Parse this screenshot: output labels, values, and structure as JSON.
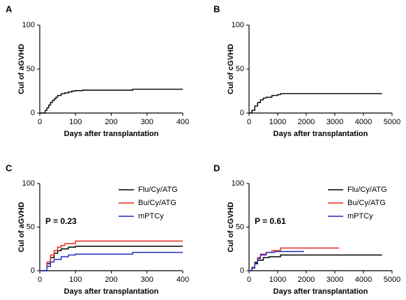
{
  "chart_data": [
    {
      "type": "line",
      "panel": "A",
      "step": true,
      "xlabel": "Days after transplantation",
      "ylabel": "Cul of aGVHD",
      "xlim": [
        0,
        400
      ],
      "ylim": [
        0,
        100
      ],
      "xticks": [
        0,
        100,
        200,
        300,
        400
      ],
      "yticks": [
        0,
        50,
        100
      ],
      "series": [
        {
          "color": "#000000",
          "x": [
            0,
            10,
            15,
            20,
            25,
            30,
            35,
            40,
            45,
            50,
            60,
            70,
            80,
            90,
            100,
            120,
            260,
            400
          ],
          "values": [
            0,
            0,
            3,
            6,
            9,
            12,
            14,
            16,
            18,
            20,
            22,
            23,
            24,
            25,
            25.5,
            26,
            27,
            27
          ]
        }
      ]
    },
    {
      "type": "line",
      "panel": "B",
      "step": true,
      "xlabel": "Days after transplantation",
      "ylabel": "Cul of cGVHD",
      "xlim": [
        0,
        5000
      ],
      "ylim": [
        0,
        100
      ],
      "xticks": [
        0,
        1000,
        2000,
        3000,
        4000,
        5000
      ],
      "yticks": [
        0,
        50,
        100
      ],
      "series": [
        {
          "color": "#000000",
          "x": [
            0,
            100,
            200,
            300,
            400,
            500,
            600,
            800,
            1000,
            1100,
            4650
          ],
          "values": [
            0,
            3,
            8,
            12,
            15,
            17,
            18,
            20,
            21,
            22,
            22
          ]
        }
      ]
    },
    {
      "type": "line",
      "panel": "C",
      "step": true,
      "xlabel": "Days after transplantation",
      "ylabel": "Cul of aGVHD",
      "annotation": "P = 0.23",
      "legend": "upper right",
      "xlim": [
        0,
        400
      ],
      "ylim": [
        0,
        100
      ],
      "xticks": [
        0,
        100,
        200,
        300,
        400
      ],
      "yticks": [
        0,
        50,
        100
      ],
      "series": [
        {
          "name": "Flu/Cy/ATG",
          "color": "#000000",
          "x": [
            0,
            12,
            20,
            30,
            40,
            50,
            60,
            80,
            100,
            400
          ],
          "values": [
            0,
            0,
            8,
            15,
            20,
            23,
            25,
            27,
            28,
            28
          ]
        },
        {
          "name": "Bu/Cy/ATG",
          "color": "#e8291c",
          "x": [
            0,
            10,
            20,
            30,
            40,
            50,
            60,
            70,
            100,
            400
          ],
          "values": [
            0,
            0,
            10,
            18,
            23,
            27,
            29,
            31,
            34,
            34
          ]
        },
        {
          "name": "mPTCy",
          "color": "#1f2fbf",
          "x": [
            0,
            12,
            20,
            30,
            40,
            60,
            80,
            100,
            250,
            260,
            400
          ],
          "values": [
            0,
            0,
            5,
            10,
            13,
            16,
            18,
            19,
            19,
            21,
            21
          ]
        }
      ]
    },
    {
      "type": "line",
      "panel": "D",
      "step": true,
      "xlabel": "Days after transplantation",
      "ylabel": "Cul of cGVHD",
      "annotation": "P = 0.61",
      "legend": "upper right",
      "xlim": [
        0,
        5000
      ],
      "ylim": [
        0,
        100
      ],
      "xticks": [
        0,
        1000,
        2000,
        3000,
        4000,
        5000
      ],
      "yticks": [
        0,
        50,
        100
      ],
      "series": [
        {
          "name": "Flu/Cy/ATG",
          "color": "#000000",
          "x": [
            0,
            100,
            200,
            300,
            500,
            700,
            1100,
            4650
          ],
          "values": [
            0,
            3,
            8,
            12,
            15,
            16,
            18,
            18
          ]
        },
        {
          "name": "Bu/Cy/ATG",
          "color": "#e8291c",
          "x": [
            0,
            100,
            200,
            300,
            400,
            600,
            800,
            1100,
            3150
          ],
          "values": [
            0,
            4,
            10,
            15,
            19,
            21,
            23,
            26,
            26
          ]
        },
        {
          "name": "mPTCy",
          "color": "#1f2fbf",
          "x": [
            0,
            100,
            200,
            300,
            400,
            600,
            900,
            1900
          ],
          "values": [
            0,
            3,
            9,
            14,
            18,
            21,
            22,
            23
          ]
        }
      ]
    }
  ]
}
